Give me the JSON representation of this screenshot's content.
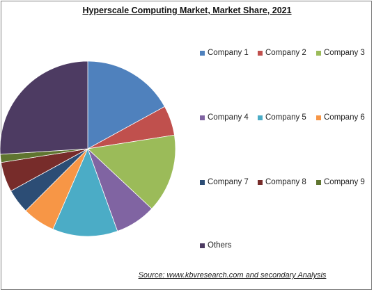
{
  "chart_data": {
    "type": "pie",
    "title": "Hyperscale Computing Market, Market Share, 2021",
    "source": "Source:  www.kbvresearch.com  and secondary Analysis",
    "legend_position": "right",
    "series": [
      {
        "name": "Company 1",
        "value": 17.0,
        "color": "#4f81bd"
      },
      {
        "name": "Company 2",
        "value": 5.5,
        "color": "#c0504d"
      },
      {
        "name": "Company 3",
        "value": 14.5,
        "color": "#9bbb59"
      },
      {
        "name": "Company 4",
        "value": 7.5,
        "color": "#8064a2"
      },
      {
        "name": "Company 5",
        "value": 12.0,
        "color": "#4bacc6"
      },
      {
        "name": "Company 6",
        "value": 6.0,
        "color": "#f79646"
      },
      {
        "name": "Company 7",
        "value": 4.5,
        "color": "#2c4d75"
      },
      {
        "name": "Company 8",
        "value": 5.5,
        "color": "#772c2a"
      },
      {
        "name": "Company 9",
        "value": 1.5,
        "color": "#5f7530"
      },
      {
        "name": "Others",
        "value": 26.0,
        "color": "#4d3b62"
      }
    ]
  }
}
